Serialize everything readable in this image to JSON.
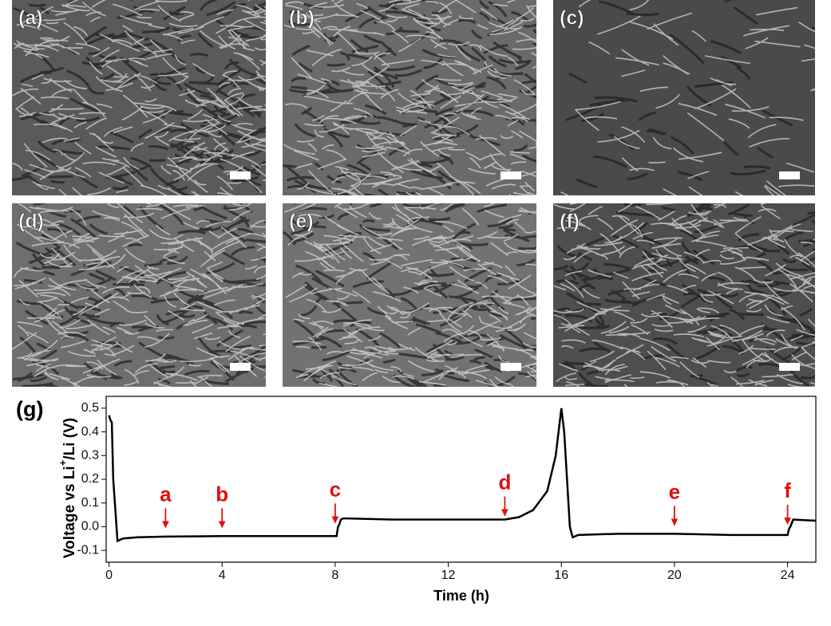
{
  "panels": [
    "(a)",
    "(b)",
    "(c)",
    "(d)",
    "(e)",
    "(f)"
  ],
  "chart_data": {
    "type": "line",
    "panel_label": "(g)",
    "x_label": "Time (h)",
    "y_label_parts": [
      "Voltage vs Li",
      "+",
      "/Li (V)"
    ],
    "x": [
      0,
      0.05,
      0.1,
      0.15,
      0.3,
      0.5,
      1,
      2,
      4,
      6,
      8,
      8.05,
      8.1,
      8.15,
      8.2,
      8.3,
      10,
      12,
      14,
      14.5,
      15,
      15.5,
      15.8,
      16,
      16.1,
      16.3,
      16.4,
      16.6,
      18,
      20,
      22,
      24,
      24.05,
      24.1,
      24.2,
      25
    ],
    "series": [
      {
        "name": "voltage",
        "color": "#000000",
        "values": [
          0.47,
          0.45,
          0.44,
          0.2,
          -0.06,
          -0.05,
          -0.045,
          -0.042,
          -0.04,
          -0.04,
          -0.04,
          -0.04,
          0.0,
          0.01,
          0.03,
          0.035,
          0.03,
          0.03,
          0.03,
          0.04,
          0.07,
          0.15,
          0.3,
          0.5,
          0.4,
          0.0,
          -0.045,
          -0.035,
          -0.03,
          -0.03,
          -0.035,
          -0.035,
          -0.01,
          0.0,
          0.03,
          0.025
        ]
      }
    ],
    "xlim": [
      -0.1,
      25
    ],
    "ylim": [
      -0.15,
      0.55
    ],
    "xticks": [
      0,
      4,
      8,
      12,
      16,
      20,
      24
    ],
    "yticks": [
      -0.1,
      {
        "value": 0,
        "label": "0.0"
      },
      0.1,
      0.2,
      0.3,
      0.4,
      0.5
    ],
    "annotations": [
      {
        "text": "a",
        "x": 2,
        "y": -0.01
      },
      {
        "text": "b",
        "x": 4,
        "y": -0.01
      },
      {
        "text": "c",
        "x": 8,
        "y": 0.01
      },
      {
        "text": "d",
        "x": 14,
        "y": 0.04
      },
      {
        "text": "e",
        "x": 20,
        "y": 0.0
      },
      {
        "text": "f",
        "x": 24,
        "y": 0.005
      }
    ]
  }
}
